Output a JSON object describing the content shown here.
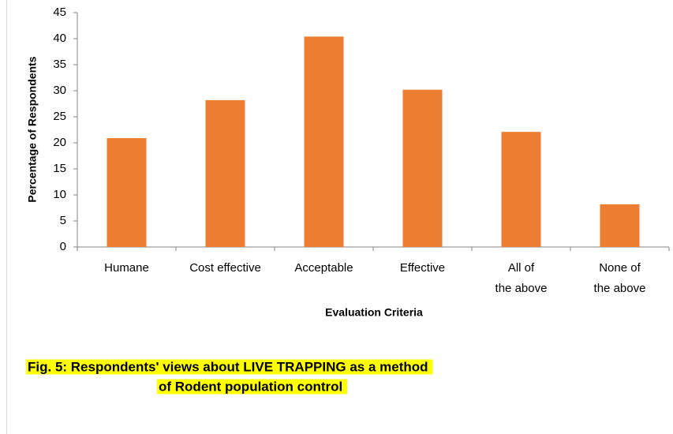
{
  "chart_data": {
    "type": "bar",
    "title": [
      "Fig. 5: Respondents' views about LIVE TRAPPING as a method",
      "of Rodent population control"
    ],
    "xlabel": "Evaluation Criteria",
    "ylabel": "Percentage of Respondents",
    "categories": [
      "Humane",
      "Cost effective",
      "Acceptable",
      "Effective",
      "All of the above",
      "None of the above"
    ],
    "values": [
      20.9,
      28.2,
      40.4,
      30.2,
      22.1,
      8.2
    ],
    "color": "#ed7d31",
    "ylim": [
      0,
      45
    ],
    "yticks": [
      0,
      5,
      10,
      15,
      20,
      25,
      30,
      35,
      40,
      45
    ],
    "grid": false
  }
}
